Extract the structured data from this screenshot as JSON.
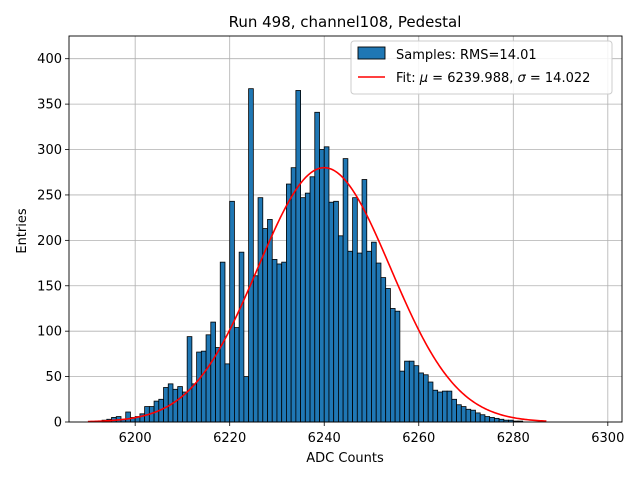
{
  "chart_data": {
    "type": "bar",
    "title": "Run 498, channel108, Pedestal",
    "xlabel": "ADC Counts",
    "ylabel": "Entries",
    "xlim": [
      6186,
      6303
    ],
    "ylim": [
      0,
      425
    ],
    "xticks": [
      "6200",
      "6220",
      "6240",
      "6260",
      "6280",
      "6300"
    ],
    "yticks": [
      "0",
      "50",
      "100",
      "150",
      "200",
      "250",
      "300",
      "350",
      "400"
    ],
    "grid": true,
    "legend_position": "top-right",
    "bin_start": 6193,
    "bin_width": 1,
    "histogram": {
      "name": "Samples: RMS=14.01",
      "color": "#1f77b4",
      "edgecolor": "#000000",
      "values": [
        2,
        3,
        5,
        6,
        3,
        11,
        5,
        6,
        9,
        17,
        17,
        23,
        25,
        38,
        42,
        36,
        39,
        33,
        94,
        42,
        77,
        78,
        96,
        110,
        82,
        176,
        64,
        243,
        104,
        187,
        50,
        367,
        161,
        247,
        213,
        223,
        179,
        174,
        176,
        262,
        280,
        365,
        247,
        252,
        270,
        341,
        300,
        303,
        242,
        243,
        205,
        290,
        188,
        247,
        186,
        267,
        188,
        198,
        175,
        159,
        147,
        125,
        122,
        56,
        67,
        67,
        62,
        54,
        52,
        44,
        35,
        33,
        34,
        34,
        25,
        19,
        17,
        14,
        13,
        10,
        8,
        6,
        5,
        4,
        3,
        2,
        2,
        1,
        1
      ]
    },
    "fit": {
      "label_prefix": "Fit: ",
      "mu_symbol": "μ",
      "mu_text": " = 6239.988, ",
      "sigma_symbol": "σ",
      "sigma_text": " = 14.022",
      "mu": 6239.988,
      "sigma": 14.022,
      "amplitude": 280,
      "x_range": [
        6190,
        6287
      ],
      "color": "#ff0000"
    }
  }
}
